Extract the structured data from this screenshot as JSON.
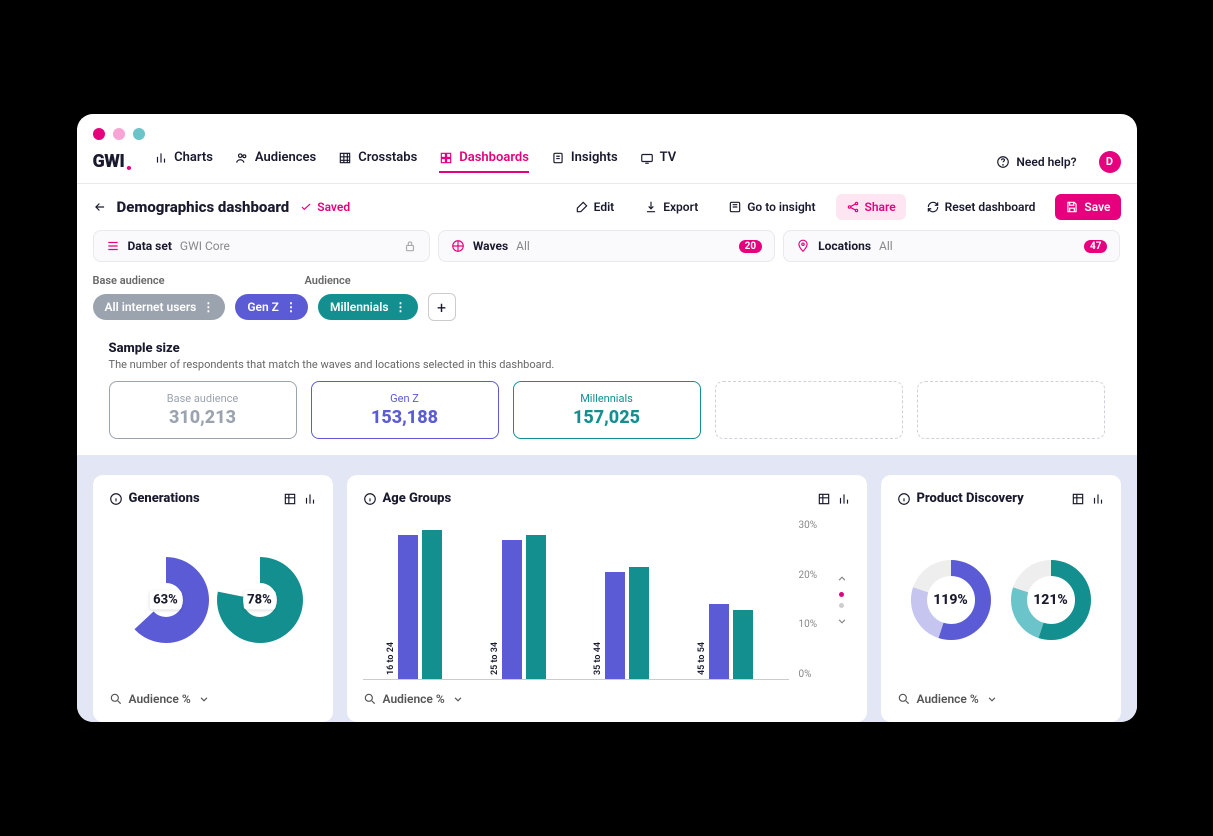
{
  "colors": {
    "pink": "#e6007e",
    "purple": "#5b5bd6",
    "teal": "#148f8f",
    "gray_pill": "#9ba3af",
    "purple_light": "#c5c5f0",
    "teal_light": "#6bc4c9",
    "card_bg": "#ffffff",
    "area_bg": "#e3e6f5"
  },
  "mac_dots": [
    "#e6007e",
    "#f8a5d5",
    "#6bc4c9"
  ],
  "logo": "GWI",
  "nav": [
    {
      "label": "Charts",
      "active": false
    },
    {
      "label": "Audiences",
      "active": false
    },
    {
      "label": "Crosstabs",
      "active": false
    },
    {
      "label": "Dashboards",
      "active": true
    },
    {
      "label": "Insights",
      "active": false
    },
    {
      "label": "TV",
      "active": false
    }
  ],
  "help_label": "Need help?",
  "avatar_letter": "D",
  "dashboard_title": "Demographics dashboard",
  "saved_label": "Saved",
  "toolbar": {
    "edit": "Edit",
    "export": "Export",
    "go_insight": "Go to insight",
    "share": "Share",
    "reset": "Reset dashboard",
    "save": "Save"
  },
  "filters": {
    "dataset": {
      "label": "Data set",
      "value": "GWI Core"
    },
    "waves": {
      "label": "Waves",
      "value": "All",
      "badge": "20"
    },
    "locations": {
      "label": "Locations",
      "value": "All",
      "badge": "47"
    }
  },
  "audiences": {
    "base_label": "Base audience",
    "aud_label": "Audience",
    "pills": [
      {
        "label": "All internet users",
        "color": "#9ba3af"
      },
      {
        "label": "Gen Z",
        "color": "#5b5bd6"
      },
      {
        "label": "Millennials",
        "color": "#148f8f"
      }
    ]
  },
  "sample": {
    "title": "Sample size",
    "subtitle": "The number of respondents that match the waves and locations selected in this dashboard.",
    "cards": [
      {
        "label": "Base audience",
        "value": "310,213",
        "color": "#9ba3af"
      },
      {
        "label": "Gen Z",
        "value": "153,188",
        "color": "#5b5bd6"
      },
      {
        "label": "Millennials",
        "value": "157,025",
        "color": "#148f8f"
      }
    ]
  },
  "chart_foot_label": "Audience %",
  "generations": {
    "title": "Generations",
    "type": "donut-pair",
    "items": [
      {
        "pct": 63,
        "label": "63%",
        "color": "#5b5bd6"
      },
      {
        "pct": 78,
        "label": "78%",
        "color": "#148f8f"
      }
    ]
  },
  "age_groups": {
    "title": "Age Groups",
    "type": "bar",
    "ymax": 30,
    "yticks": [
      "30%",
      "20%",
      "10%",
      "0%"
    ],
    "categories": [
      "16 to 24",
      "25 to 34",
      "35 to 44",
      "45 to 54"
    ],
    "series_colors": [
      "#5b5bd6",
      "#148f8f"
    ],
    "data": [
      [
        27,
        28
      ],
      [
        26,
        27
      ],
      [
        20,
        21
      ],
      [
        14,
        13
      ]
    ]
  },
  "product_discovery": {
    "title": "Product Discovery",
    "type": "ring-pair",
    "items": [
      {
        "pct": 119,
        "label": "119%",
        "primary": "#5b5bd6",
        "secondary": "#c5c5f0"
      },
      {
        "pct": 121,
        "label": "121%",
        "primary": "#148f8f",
        "secondary": "#6bc4c9"
      }
    ]
  }
}
